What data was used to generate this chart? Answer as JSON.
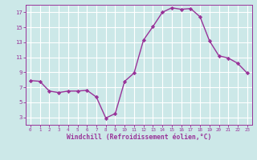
{
  "hours": [
    0,
    1,
    2,
    3,
    4,
    5,
    6,
    7,
    8,
    9,
    10,
    11,
    12,
    13,
    14,
    15,
    16,
    17,
    18,
    19,
    20,
    21,
    22,
    23
  ],
  "values": [
    7.9,
    7.8,
    6.5,
    6.3,
    6.5,
    6.5,
    6.6,
    5.7,
    2.9,
    3.5,
    7.8,
    8.9,
    13.3,
    15.1,
    17.0,
    17.6,
    17.4,
    17.5,
    16.4,
    13.2,
    11.2,
    10.9,
    10.2,
    8.9
  ],
  "line_color": "#993399",
  "marker": "D",
  "marker_size": 2.2,
  "bg_color": "#cce8e8",
  "grid_color": "#b0d8d8",
  "xlabel": "Windchill (Refroidissement éolien,°C)",
  "xlabel_color": "#993399",
  "tick_color": "#993399",
  "ylim": [
    2,
    18
  ],
  "xlim": [
    -0.5,
    23.5
  ],
  "yticks": [
    3,
    5,
    7,
    9,
    11,
    13,
    15,
    17
  ],
  "xticks": [
    0,
    1,
    2,
    3,
    4,
    5,
    6,
    7,
    8,
    9,
    10,
    11,
    12,
    13,
    14,
    15,
    16,
    17,
    18,
    19,
    20,
    21,
    22,
    23
  ]
}
